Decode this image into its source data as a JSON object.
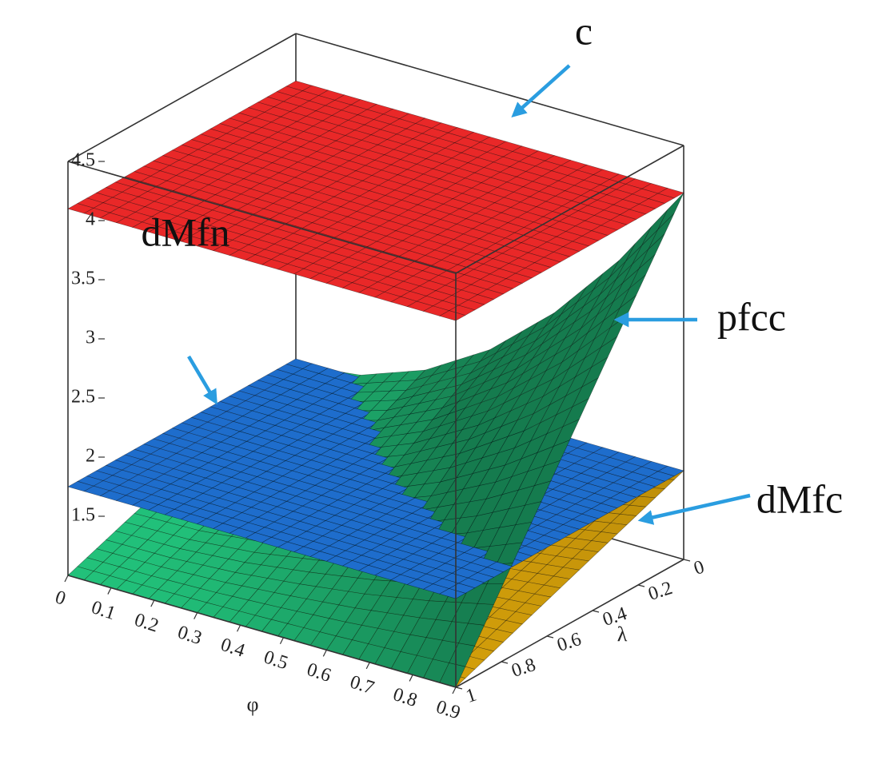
{
  "chart_data": {
    "type": "surface3d",
    "xlabel": "φ",
    "ylabel": "λ",
    "xlim": [
      0,
      0.9
    ],
    "ylim": [
      0,
      1
    ],
    "zlim": [
      1,
      4.5
    ],
    "xticks": [
      0,
      0.1,
      0.2,
      0.3,
      0.4,
      0.5,
      0.6,
      0.7,
      0.8,
      0.9
    ],
    "yticks": [
      0,
      0.2,
      0.4,
      0.6,
      0.8,
      1
    ],
    "zticks": [
      1.5,
      2,
      2.5,
      3,
      3.5,
      4,
      4.5
    ],
    "surfaces": [
      {
        "name": "c",
        "color": "#f42a2a",
        "x": [
          0,
          0.9
        ],
        "y": [
          0,
          1
        ],
        "values": [
          [
            4.1,
            4.1
          ],
          [
            4.1,
            4.1
          ]
        ]
      },
      {
        "name": "dMfn",
        "color": "#1f72d6",
        "x": [
          0,
          0.9
        ],
        "y": [
          0,
          1
        ],
        "values": [
          [
            1.75,
            1.75
          ],
          [
            1.75,
            1.75
          ]
        ]
      },
      {
        "name": "pfcc",
        "color": "#27e08e",
        "x": [
          0,
          0.15,
          0.3,
          0.45,
          0.6,
          0.75,
          0.9
        ],
        "y": [
          0,
          0.25,
          0.5,
          0.75,
          1
        ],
        "values": [
          [
            1.7,
            1.77,
            1.97,
            2.3,
            2.77,
            3.37,
            4.1
          ],
          [
            1.53,
            1.58,
            1.73,
            1.98,
            2.33,
            2.78,
            3.33
          ],
          [
            1.35,
            1.38,
            1.48,
            1.65,
            1.88,
            2.18,
            2.55
          ],
          [
            1.18,
            1.19,
            1.24,
            1.33,
            1.44,
            1.59,
            1.78
          ],
          [
            1,
            1,
            1,
            1,
            1,
            1,
            1
          ]
        ]
      },
      {
        "name": "dMfc",
        "color": "#f6b90c",
        "x": [
          0,
          0.9
        ],
        "y": [
          0,
          1
        ],
        "values": [
          [
            1,
            1.75
          ],
          [
            1,
            1
          ]
        ]
      }
    ]
  }
}
